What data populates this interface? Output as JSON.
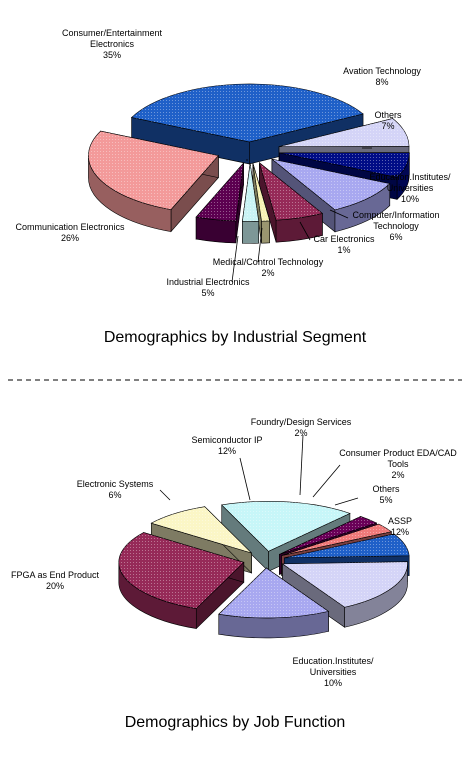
{
  "chart_data": [
    {
      "type": "pie",
      "title": "Demographics by Industrial Segment",
      "slices": [
        {
          "label": "Consumer/Entertainment Electronics",
          "value_label": "35%",
          "value": 35,
          "color": "#1f60c8"
        },
        {
          "label": "Avation Technology",
          "value_label": "8%",
          "value": 8,
          "color": "#d4d4f7"
        },
        {
          "label": "Others",
          "value_label": "7%",
          "value": 7,
          "color": "#000c86"
        },
        {
          "label": "Education.Institutes/ Universities",
          "value_label": "10%",
          "value": 10,
          "color": "#a8a8f0"
        },
        {
          "label": "Computer/Information Technology",
          "value_label": "6%",
          "value": 6,
          "color": "#962a58"
        },
        {
          "label": "Car Electronics",
          "value_label": "1%",
          "value": 1,
          "color": "#f8f2b4"
        },
        {
          "label": "Medical/Control Technology",
          "value_label": "2%",
          "value": 2,
          "color": "#c9f3f4"
        },
        {
          "label": "Industrial Electronics",
          "value_label": "5%",
          "value": 5,
          "color": "#5c0050"
        },
        {
          "label": "Communication Electronics",
          "value_label": "26%",
          "value": 26,
          "color": "#f39a9a"
        }
      ]
    },
    {
      "type": "pie",
      "title": "Demographics by Job Function",
      "slices": [
        {
          "label": "Semiconductor IP",
          "value_label": "12%",
          "value": 12,
          "color": "#c7f6f8"
        },
        {
          "label": "Foundry/Design Services",
          "value_label": "2%",
          "value": 2,
          "color": "#6a0058"
        },
        {
          "label": "Consumer Product EDA/CAD Tools",
          "value_label": "2%",
          "value": 2,
          "color": "#f07a7a"
        },
        {
          "label": "Others",
          "value_label": "5%",
          "value": 5,
          "color": "#1f60c8"
        },
        {
          "label": "ASSP",
          "value_label": "12%",
          "value": 12,
          "color": "#d4d4f7"
        },
        {
          "label": "Education.Institutes/ Universities",
          "value_label": "10%",
          "value": 10,
          "color": "#a8a8f0"
        },
        {
          "label": "FPGA as End Product",
          "value_label": "20%",
          "value": 20,
          "color": "#962a58"
        },
        {
          "label": "Electronic Systems",
          "value_label": "6%",
          "value": 6,
          "color": "#fbf6c6"
        }
      ]
    }
  ]
}
